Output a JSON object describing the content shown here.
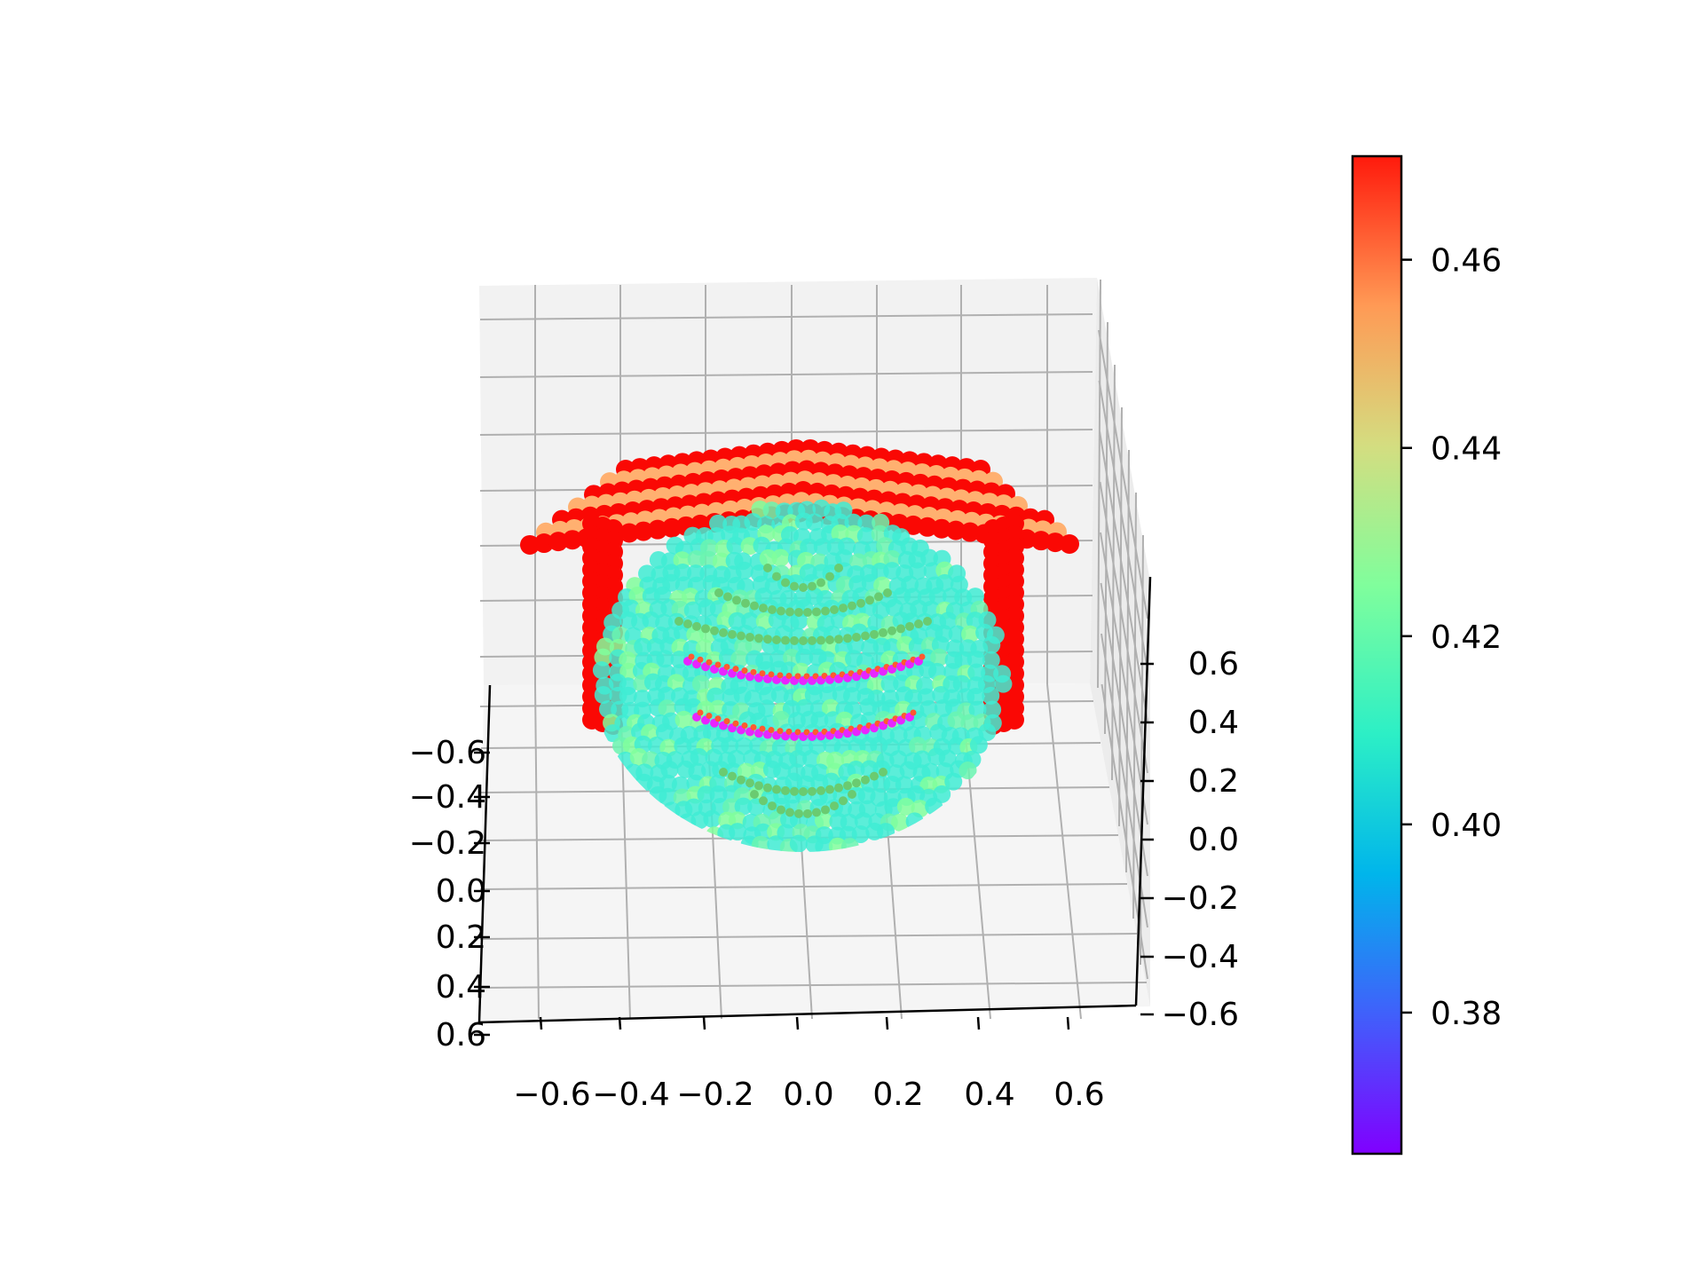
{
  "chart_data": {
    "type": "scatter",
    "projection": "3d",
    "title": "",
    "xlabel": "",
    "ylabel": "",
    "zlabel": "",
    "grid": true,
    "shape": "cylinder with horizontal bands",
    "x_ticks": [
      "−0.6",
      "−0.4",
      "−0.2",
      "0.0",
      "0.2",
      "0.4",
      "0.6"
    ],
    "y_ticks": [
      "−0.6",
      "−0.4",
      "−0.2",
      "0.0",
      "0.2",
      "0.4",
      "0.6"
    ],
    "z_ticks": [
      "0.6",
      "0.4",
      "0.2",
      "0.0",
      "−0.2",
      "−0.4",
      "−0.6"
    ],
    "xlim": [
      -0.7,
      0.7
    ],
    "ylim": [
      -0.7,
      0.7
    ],
    "zlim": [
      -0.7,
      0.7
    ],
    "colorbar": {
      "colormap": "rainbow",
      "range": [
        0.365,
        0.471
      ],
      "ticks": [
        0.38,
        0.4,
        0.42,
        0.44,
        0.46
      ],
      "tick_labels": [
        "0.38",
        "0.40",
        "0.42",
        "0.44",
        "0.46"
      ]
    },
    "color_groups": [
      {
        "region": "rim",
        "value": 0.47
      },
      {
        "region": "upper-face",
        "value": 0.405
      },
      {
        "region": "bands",
        "value": 0.44
      },
      {
        "region": "band-edges",
        "value": 0.37
      }
    ]
  }
}
